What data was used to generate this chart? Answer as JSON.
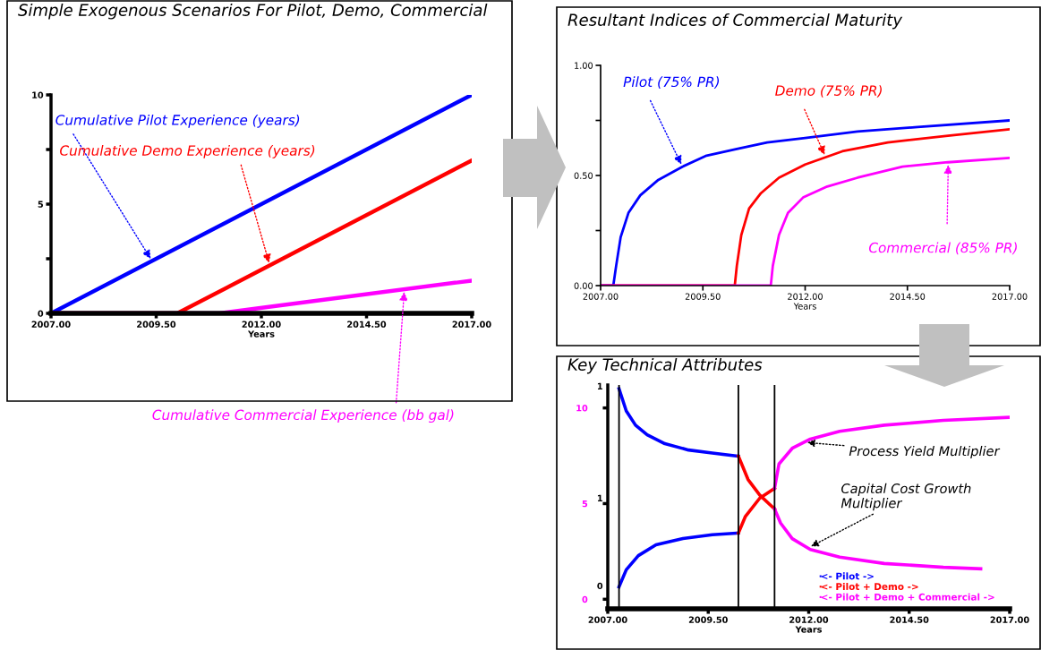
{
  "chart_data": [
    {
      "type": "line",
      "title": "Simple Exogenous Scenarios For Pilot, Demo, Commercial",
      "xlabel": "Years",
      "xlim": [
        2007,
        2017
      ],
      "ylim": [
        0,
        10
      ],
      "xticks": [
        {
          "value": 2007,
          "label": "2007.00"
        },
        {
          "value": 2009.5,
          "label": "2009.50"
        },
        {
          "value": 2012,
          "label": "2012.00"
        },
        {
          "value": 2014.5,
          "label": "2014.50"
        },
        {
          "value": 2017,
          "label": "2017.00"
        }
      ],
      "yticks": [
        0,
        {
          "value": 2.5,
          "label": null
        },
        5,
        {
          "value": 7.5,
          "label": null
        },
        10
      ],
      "series": [
        {
          "name": "Cumulative Pilot Experience (years)",
          "color": "#0000ff",
          "x": [
            2007,
            2017
          ],
          "values": [
            0,
            10
          ]
        },
        {
          "name": "Cumulative Demo Experience (years)",
          "color": "#ff0000",
          "x": [
            2007,
            2010,
            2017
          ],
          "values": [
            0,
            0,
            7
          ]
        },
        {
          "name": "Cumulative Commercial Experience (bb gal)",
          "color": "#ff00ff",
          "x": [
            2007,
            2011,
            2017
          ],
          "values": [
            0,
            0,
            1.5
          ]
        }
      ]
    },
    {
      "type": "line",
      "title": "Resultant Indices of Commercial Maturity",
      "xlabel": "Years",
      "xlim": [
        2007,
        2017
      ],
      "ylim": [
        0,
        1
      ],
      "xticks": [
        {
          "value": 2007,
          "label": "2007.00"
        },
        {
          "value": 2009.5,
          "label": "2009.50"
        },
        {
          "value": 2012,
          "label": "2012.00"
        },
        {
          "value": 2014.5,
          "label": "2014.50"
        },
        {
          "value": 2017,
          "label": "2017.00"
        }
      ],
      "yticks": [
        {
          "value": 0,
          "label": "0.00"
        },
        {
          "value": 0.25,
          "label": null
        },
        {
          "value": 0.5,
          "label": "0.50"
        },
        {
          "value": 0.75,
          "label": null
        },
        {
          "value": 1,
          "label": "1.00"
        }
      ],
      "series": [
        {
          "name": "Pilot (75% PR)",
          "color": "#0000ff",
          "x": [
            2007,
            2007.31,
            2007.38,
            2007.49,
            2007.68,
            2007.97,
            2008.41,
            2009.0,
            2009.59,
            2010.33,
            2011.07,
            2012,
            2013.28,
            2014.75,
            2017
          ],
          "values": [
            0,
            0,
            0.09,
            0.22,
            0.33,
            0.41,
            0.48,
            0.54,
            0.59,
            0.62,
            0.65,
            0.67,
            0.7,
            0.72,
            0.75
          ]
        },
        {
          "name": "Demo (75% PR)",
          "color": "#ff0000",
          "x": [
            2007,
            2010.28,
            2010.33,
            2010.44,
            2010.63,
            2010.92,
            2011.36,
            2012,
            2012.91,
            2014.02,
            2015.49,
            2017
          ],
          "values": [
            0,
            0,
            0.09,
            0.23,
            0.35,
            0.42,
            0.49,
            0.55,
            0.61,
            0.65,
            0.68,
            0.71
          ]
        },
        {
          "name": "Commercial (85% PR)",
          "color": "#ff00ff",
          "x": [
            2007,
            2011.16,
            2011.21,
            2011.36,
            2011.58,
            2011.95,
            2012.54,
            2013.28,
            2014.38,
            2015.49,
            2017
          ],
          "values": [
            0,
            0,
            0.09,
            0.23,
            0.33,
            0.4,
            0.45,
            0.49,
            0.54,
            0.56,
            0.58
          ]
        }
      ]
    },
    {
      "type": "line",
      "title": "Key Technical Attributes",
      "xlabel": "Years",
      "xlim": [
        2007,
        2017
      ],
      "ylim": [
        -0.5,
        11.2
      ],
      "xticks": [
        {
          "value": 2007,
          "label": "2007.00"
        },
        {
          "value": 2009.5,
          "label": "2009.50"
        },
        {
          "value": 2012,
          "label": "2012.00"
        },
        {
          "value": 2014.5,
          "label": "2014.50"
        },
        {
          "value": 2017,
          "label": "2017.00"
        }
      ],
      "yticks": [
        0,
        5,
        10
      ],
      "legend": "bottom right",
      "ref_lines": [
        {
          "axis": "x",
          "value": 2007.28,
          "color": "#000000"
        },
        {
          "axis": "x",
          "value": 2010.25,
          "color": "#000000"
        },
        {
          "axis": "x",
          "value": 2011.15,
          "color": "#000000"
        }
      ],
      "annotations": [
        {
          "text": "Process Yield Multiplier",
          "x": 2011.9,
          "y": 8.2
        },
        {
          "text": "Capital Cost Growth Multiplier",
          "x": 2012.0,
          "y": 2.7
        },
        "0",
        "1",
        "1"
      ],
      "series": [
        {
          "name": "<- Pilot ->",
          "color": "#0000ff",
          "x": [
            2007.28,
            2007.46,
            2007.69,
            2007.98,
            2008.42,
            2009.01,
            2009.6,
            2010.25
          ],
          "values": [
            11.0,
            9.84,
            9.1,
            8.6,
            8.13,
            7.8,
            7.64,
            7.48
          ]
        },
        {
          "name": "<- Pilot + Demo ->",
          "color": "#ff0000",
          "x": [
            2010.25,
            2010.49,
            2010.78,
            2011.15
          ],
          "values": [
            7.48,
            6.26,
            5.45,
            4.72
          ]
        },
        {
          "name": "<- Pilot + Demo + Commercial ->",
          "color": "#ff00ff",
          "x": [
            2011.15,
            2011.3,
            2011.59,
            2012.04,
            2012.77,
            2013.88,
            2015.35,
            2016.28
          ],
          "values": [
            4.72,
            3.98,
            3.17,
            2.6,
            2.2,
            1.87,
            1.67,
            1.59
          ]
        },
        {
          "color": "#0000ff",
          "x": [
            2007.28,
            2007.46,
            2007.76,
            2008.2,
            2008.87,
            2009.6,
            2010.25
          ],
          "values": [
            0.65,
            1.54,
            2.28,
            2.85,
            3.17,
            3.37,
            3.46
          ]
        },
        {
          "color": "#ff0000",
          "x": [
            2010.25,
            2010.42,
            2010.78,
            2011.15
          ],
          "values": [
            3.46,
            4.31,
            5.28,
            5.8
          ]
        },
        {
          "color": "#ff00ff",
          "x": [
            2011.15,
            2011.26,
            2011.59,
            2012.04,
            2012.77,
            2013.88,
            2015.35,
            2017
          ],
          "values": [
            5.8,
            7.07,
            7.89,
            8.37,
            8.78,
            9.1,
            9.35,
            9.51
          ]
        }
      ]
    }
  ]
}
